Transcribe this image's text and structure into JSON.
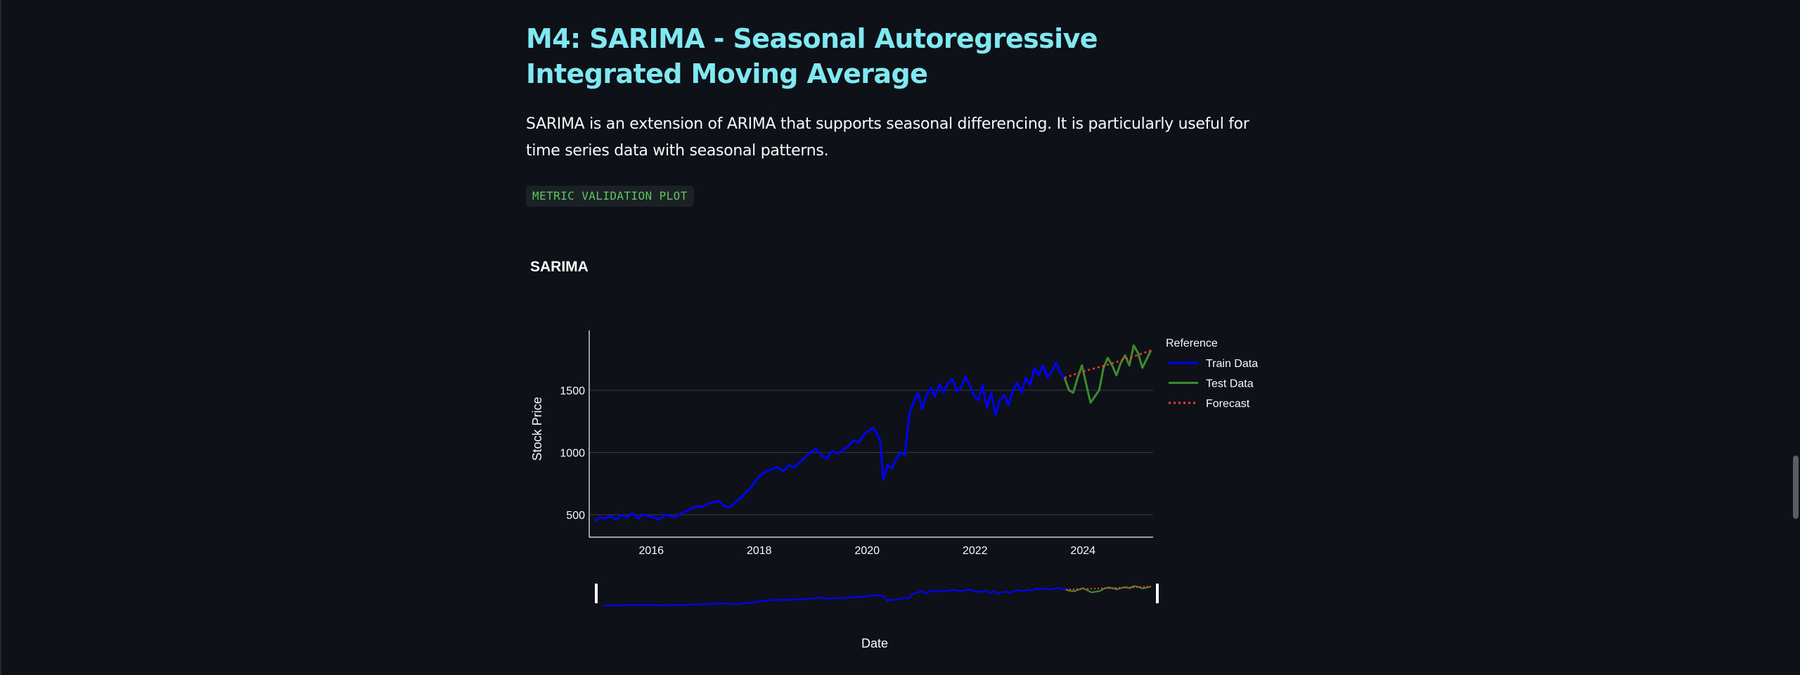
{
  "header": {
    "title": "M4: SARIMA - Seasonal Autoregressive Integrated Moving Average",
    "description": "SARIMA is an extension of ARIMA that supports seasonal differencing. It is particularly useful for time series data with seasonal patterns.",
    "code_label": "METRIC VALIDATION PLOT"
  },
  "chart_data": {
    "type": "line",
    "title": "SARIMA",
    "xlabel": "Date",
    "ylabel": "Stock Price",
    "x_ticks": [
      "2016",
      "2018",
      "2020",
      "2022",
      "2024"
    ],
    "y_ticks": [
      "500",
      "1000",
      "1500"
    ],
    "ylim": [
      320,
      1980
    ],
    "xlim": [
      2014.85,
      2025.3
    ],
    "grid": true,
    "legend_title": "Reference",
    "legend_position": "right",
    "range_slider": true,
    "series": [
      {
        "name": "Train Data",
        "color": "#0000ff",
        "style": "solid",
        "x": [
          2014.95,
          2015.05,
          2015.15,
          2015.25,
          2015.35,
          2015.45,
          2015.55,
          2015.65,
          2015.75,
          2015.85,
          2015.95,
          2016.05,
          2016.15,
          2016.25,
          2016.35,
          2016.45,
          2016.55,
          2016.65,
          2016.75,
          2016.85,
          2016.95,
          2017.05,
          2017.15,
          2017.25,
          2017.35,
          2017.45,
          2017.55,
          2017.65,
          2017.75,
          2017.85,
          2017.95,
          2018.05,
          2018.15,
          2018.25,
          2018.35,
          2018.45,
          2018.55,
          2018.65,
          2018.75,
          2018.85,
          2018.95,
          2019.05,
          2019.15,
          2019.25,
          2019.35,
          2019.45,
          2019.55,
          2019.65,
          2019.75,
          2019.85,
          2019.95,
          2020.05,
          2020.12,
          2020.18,
          2020.24,
          2020.3,
          2020.38,
          2020.46,
          2020.54,
          2020.62,
          2020.7,
          2020.78,
          2020.86,
          2020.94,
          2021.02,
          2021.1,
          2021.18,
          2021.26,
          2021.34,
          2021.42,
          2021.5,
          2021.58,
          2021.66,
          2021.74,
          2021.82,
          2021.9,
          2021.98,
          2022.06,
          2022.14,
          2022.22,
          2022.3,
          2022.38,
          2022.46,
          2022.54,
          2022.62,
          2022.7,
          2022.78,
          2022.86,
          2022.94,
          2023.02,
          2023.1,
          2023.18,
          2023.26,
          2023.34,
          2023.42,
          2023.5,
          2023.58,
          2023.66
        ],
        "y": [
          450,
          480,
          470,
          490,
          460,
          500,
          480,
          510,
          470,
          500,
          490,
          480,
          460,
          500,
          490,
          480,
          510,
          530,
          550,
          570,
          560,
          590,
          600,
          610,
          570,
          560,
          600,
          630,
          680,
          720,
          780,
          830,
          850,
          870,
          880,
          850,
          900,
          880,
          920,
          960,
          1000,
          1030,
          980,
          950,
          1010,
          990,
          1020,
          1050,
          1100,
          1080,
          1150,
          1180,
          1200,
          1150,
          1100,
          780,
          900,
          870,
          950,
          1000,
          980,
          1300,
          1400,
          1480,
          1350,
          1460,
          1520,
          1450,
          1550,
          1480,
          1560,
          1590,
          1490,
          1520,
          1610,
          1540,
          1460,
          1420,
          1540,
          1360,
          1480,
          1300,
          1420,
          1460,
          1380,
          1500,
          1560,
          1480,
          1600,
          1540,
          1680,
          1620,
          1700,
          1600,
          1650,
          1720,
          1640,
          1600
        ]
      },
      {
        "name": "Test Data",
        "color": "#3c8c2e",
        "style": "solid",
        "x": [
          2023.66,
          2023.74,
          2023.82,
          2023.9,
          2023.98,
          2024.06,
          2024.14,
          2024.22,
          2024.3,
          2024.38,
          2024.46,
          2024.54,
          2024.62,
          2024.7,
          2024.78,
          2024.86,
          2024.94,
          2025.02,
          2025.1,
          2025.18,
          2025.26
        ],
        "y": [
          1600,
          1500,
          1480,
          1600,
          1700,
          1550,
          1400,
          1450,
          1500,
          1680,
          1760,
          1700,
          1620,
          1720,
          1780,
          1700,
          1860,
          1800,
          1680,
          1750,
          1820
        ]
      },
      {
        "name": "Forecast",
        "color": "#ff3b30",
        "style": "dotted",
        "x": [
          2023.66,
          2024.0,
          2024.5,
          2025.0,
          2025.26
        ],
        "y": [
          1600,
          1650,
          1710,
          1780,
          1820
        ]
      }
    ]
  }
}
